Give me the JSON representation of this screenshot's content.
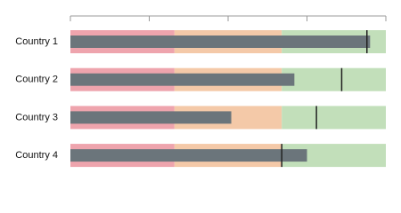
{
  "chart_data": {
    "type": "bullet",
    "categories": [
      "Country 1",
      "Country 2",
      "Country 3",
      "Country 4"
    ],
    "values": [
      95,
      71,
      51,
      75
    ],
    "targets": [
      94,
      86,
      78,
      67
    ],
    "ranges": [
      {
        "color": "#eea4ad",
        "value": 33
      },
      {
        "color": "#f4c9a8",
        "value": 34
      },
      {
        "color": "#c2dfba",
        "value": 33
      }
    ],
    "color": "#6b757b",
    "target_color": "#222222",
    "xlim": [
      0,
      100
    ],
    "xticks": [
      0,
      25,
      50,
      75,
      100
    ]
  }
}
